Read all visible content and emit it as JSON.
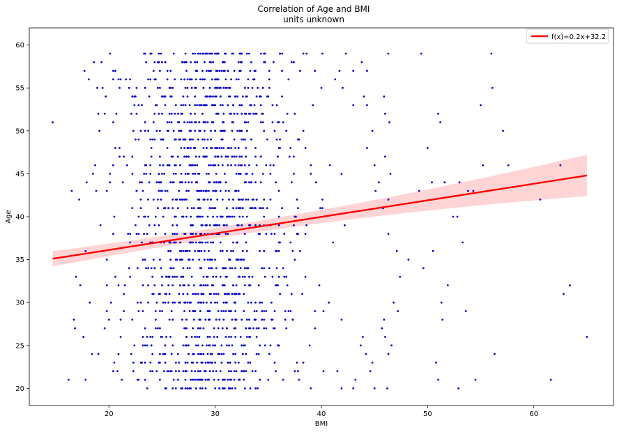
{
  "chart_data": {
    "type": "scatter",
    "title": "Correlation of Age and BMI",
    "subtitle": "units unknown",
    "xlabel": "BMI",
    "ylabel": "Age",
    "xlim": [
      12.5,
      67.5
    ],
    "ylim": [
      18,
      62
    ],
    "xticks": [
      20,
      30,
      40,
      50,
      60
    ],
    "yticks": [
      20,
      25,
      30,
      35,
      40,
      45,
      50,
      55,
      60
    ],
    "grid": false,
    "legend_position": "top-right",
    "colors": {
      "points": "#0000cc",
      "line": "#ff0000",
      "band": "#ffcccc"
    },
    "series": [
      {
        "kind": "points",
        "age_range": [
          20,
          59
        ],
        "bmi_range": [
          14.7,
          65
        ],
        "points": [
          [
            14.7,
            51
          ],
          [
            16.2,
            21
          ],
          [
            16.5,
            43
          ],
          [
            16.7,
            28
          ],
          [
            16.8,
            27
          ],
          [
            16.9,
            33
          ],
          [
            17.2,
            42
          ],
          [
            17.3,
            32
          ],
          [
            17.6,
            26
          ],
          [
            17.7,
            57
          ],
          [
            17.9,
            44
          ],
          [
            18.1,
            56
          ],
          [
            18.5,
            45
          ],
          [
            18.8,
            43
          ],
          [
            18.9,
            55
          ],
          [
            19.1,
            50
          ],
          [
            19.3,
            58
          ],
          [
            19.5,
            36
          ],
          [
            20.1,
            59
          ],
          [
            20.4,
            57
          ],
          [
            21.1,
            56
          ],
          [
            22.2,
            54
          ],
          [
            23.4,
            59
          ],
          [
            24.6,
            58
          ],
          [
            26.1,
            59
          ],
          [
            28.3,
            58
          ],
          [
            30.2,
            59
          ],
          [
            32.4,
            57
          ],
          [
            34.7,
            58
          ],
          [
            36.3,
            59
          ],
          [
            37.4,
            58
          ],
          [
            38.6,
            59
          ],
          [
            40.1,
            59
          ],
          [
            42.3,
            59
          ],
          [
            43.0,
            57
          ],
          [
            43.8,
            58
          ],
          [
            44.3,
            57
          ],
          [
            46.3,
            59
          ],
          [
            49.4,
            59
          ],
          [
            56.0,
            59
          ],
          [
            40.0,
            55
          ],
          [
            41.3,
            56
          ],
          [
            42.0,
            55
          ],
          [
            43.0,
            53
          ],
          [
            44.0,
            54
          ],
          [
            44.3,
            53
          ],
          [
            45.9,
            54
          ],
          [
            46.0,
            52
          ],
          [
            46.4,
            51
          ],
          [
            44.8,
            50
          ],
          [
            44.3,
            48
          ],
          [
            45.0,
            46
          ],
          [
            45.4,
            44
          ],
          [
            46.5,
            45
          ],
          [
            46.0,
            47
          ],
          [
            46.3,
            42
          ],
          [
            45.1,
            43
          ],
          [
            45.8,
            41
          ],
          [
            46.3,
            38
          ],
          [
            47.1,
            36
          ],
          [
            47.4,
            33
          ],
          [
            48.2,
            35
          ],
          [
            46.8,
            30
          ],
          [
            47.2,
            29
          ],
          [
            45.9,
            28
          ],
          [
            45.7,
            27
          ],
          [
            46.0,
            26
          ],
          [
            46.3,
            24
          ],
          [
            46.6,
            25
          ],
          [
            44.8,
            23
          ],
          [
            44.6,
            22
          ],
          [
            45.0,
            20
          ],
          [
            46.2,
            20
          ],
          [
            43.2,
            21
          ],
          [
            43.7,
            25
          ],
          [
            43.9,
            26
          ],
          [
            44.2,
            24
          ],
          [
            41.5,
            22
          ],
          [
            41.9,
            20
          ],
          [
            43.0,
            20
          ],
          [
            49.2,
            43
          ],
          [
            49.6,
            34
          ],
          [
            50.0,
            48
          ],
          [
            50.4,
            44
          ],
          [
            50.5,
            36
          ],
          [
            50.8,
            23
          ],
          [
            51.0,
            52
          ],
          [
            51.2,
            51
          ],
          [
            51.3,
            30
          ],
          [
            51.4,
            28
          ],
          [
            51.6,
            44
          ],
          [
            51.9,
            32
          ],
          [
            52.4,
            40
          ],
          [
            53.0,
            44
          ],
          [
            52.8,
            40
          ],
          [
            53.3,
            37
          ],
          [
            53.6,
            29
          ],
          [
            52.9,
            20
          ],
          [
            51.0,
            21
          ],
          [
            53.8,
            43
          ],
          [
            54.3,
            43
          ],
          [
            54.5,
            21
          ],
          [
            55.0,
            53
          ],
          [
            55.2,
            46
          ],
          [
            56.1,
            55
          ],
          [
            56.3,
            24
          ],
          [
            57.1,
            50
          ],
          [
            57.6,
            46
          ],
          [
            60.6,
            42
          ],
          [
            61.6,
            21
          ],
          [
            62.5,
            46
          ],
          [
            62.8,
            31
          ],
          [
            63.4,
            32
          ],
          [
            65.0,
            26
          ],
          [
            21.0,
            47
          ],
          [
            22.5,
            49
          ],
          [
            24.0,
            48
          ],
          [
            25.5,
            46
          ],
          [
            26.8,
            52
          ],
          [
            27.9,
            49
          ],
          [
            29.1,
            47
          ],
          [
            30.6,
            50
          ],
          [
            31.9,
            48
          ],
          [
            33.2,
            46
          ],
          [
            34.5,
            51
          ],
          [
            35.8,
            49
          ],
          [
            37.0,
            47
          ],
          [
            38.3,
            50
          ],
          [
            39.5,
            44
          ],
          [
            40.8,
            46
          ],
          [
            41.9,
            45
          ],
          [
            20.5,
            40
          ],
          [
            21.8,
            38
          ],
          [
            23.0,
            41
          ],
          [
            24.3,
            39
          ],
          [
            25.7,
            37
          ],
          [
            27.0,
            40
          ],
          [
            28.2,
            38
          ],
          [
            29.6,
            42
          ],
          [
            30.9,
            39
          ],
          [
            32.1,
            37
          ],
          [
            33.4,
            41
          ],
          [
            34.8,
            38
          ],
          [
            36.0,
            40
          ],
          [
            37.3,
            36
          ],
          [
            38.6,
            39
          ],
          [
            39.9,
            41
          ],
          [
            41.1,
            37
          ],
          [
            42.2,
            39
          ],
          [
            20.2,
            30
          ],
          [
            21.5,
            32
          ],
          [
            22.8,
            29
          ],
          [
            24.1,
            31
          ],
          [
            25.4,
            33
          ],
          [
            26.7,
            30
          ],
          [
            28.0,
            28
          ],
          [
            29.3,
            32
          ],
          [
            30.6,
            29
          ],
          [
            31.8,
            31
          ],
          [
            33.1,
            30
          ],
          [
            34.4,
            28
          ],
          [
            35.7,
            32
          ],
          [
            36.9,
            29
          ],
          [
            38.2,
            31
          ],
          [
            39.4,
            27
          ],
          [
            40.7,
            30
          ],
          [
            41.9,
            28
          ],
          [
            20.8,
            22
          ],
          [
            22.1,
            24
          ],
          [
            23.4,
            21
          ],
          [
            24.7,
            23
          ],
          [
            26.0,
            25
          ],
          [
            27.3,
            22
          ],
          [
            28.6,
            24
          ],
          [
            29.9,
            21
          ],
          [
            31.2,
            23
          ],
          [
            32.5,
            25
          ],
          [
            33.8,
            22
          ],
          [
            35.1,
            24
          ],
          [
            36.4,
            21
          ],
          [
            37.7,
            23
          ],
          [
            38.9,
            25
          ],
          [
            40.2,
            22
          ],
          [
            19.6,
            27
          ],
          [
            19.8,
            35
          ],
          [
            19.2,
            39
          ],
          [
            18.7,
            46
          ],
          [
            19.0,
            52
          ],
          [
            19.7,
            54
          ],
          [
            18.2,
            30
          ],
          [
            18.4,
            24
          ],
          [
            17.8,
            21
          ]
        ]
      },
      {
        "kind": "regression",
        "name": "f(x)=0.2x+32.2",
        "x": [
          14.7,
          65
        ],
        "y": [
          35.1,
          44.8
        ],
        "ci_lower": [
          34.2,
          42.4
        ],
        "ci_upper": [
          36.0,
          47.2
        ]
      }
    ]
  }
}
